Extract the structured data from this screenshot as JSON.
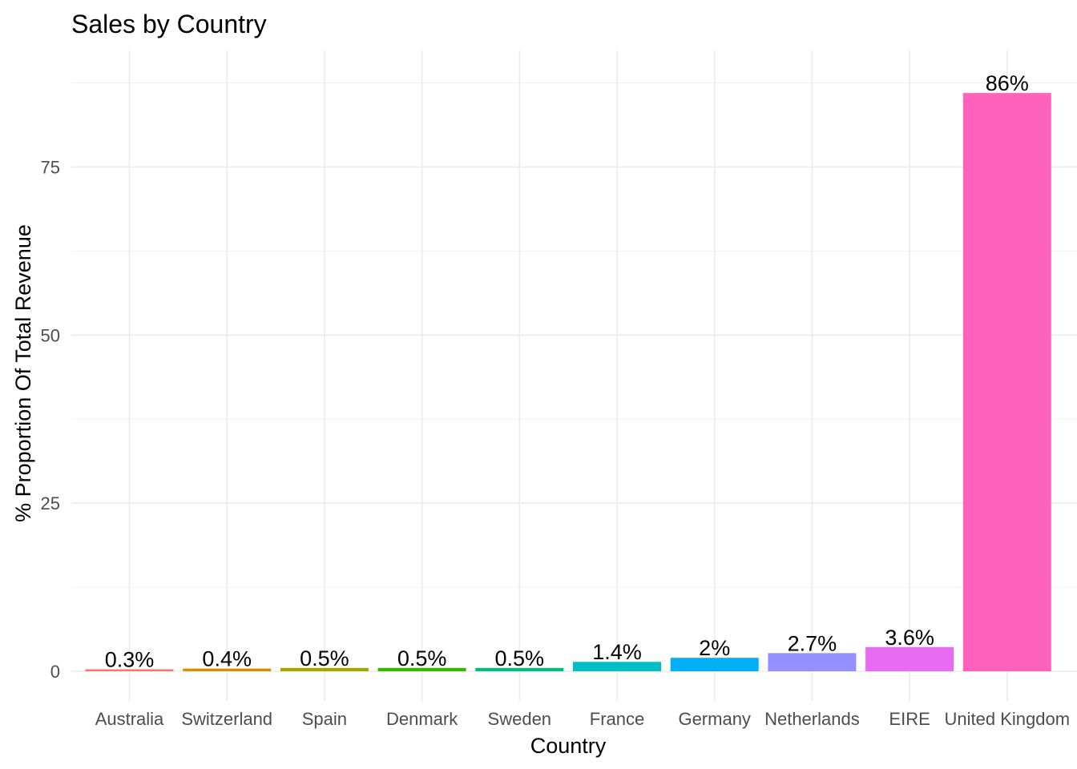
{
  "chart_data": {
    "type": "bar",
    "title": "Sales by Country",
    "xlabel": "Country",
    "ylabel": "% Proportion Of Total Revenue",
    "categories": [
      "Australia",
      "Switzerland",
      "Spain",
      "Denmark",
      "Sweden",
      "France",
      "Germany",
      "Netherlands",
      "EIRE",
      "United Kingdom"
    ],
    "values": [
      0.3,
      0.4,
      0.5,
      0.5,
      0.5,
      1.4,
      2.0,
      2.7,
      3.6,
      86.0
    ],
    "labels": [
      "0.3%",
      "0.4%",
      "0.5%",
      "0.5%",
      "0.5%",
      "1.4%",
      "2%",
      "2.7%",
      "3.6%",
      "86%"
    ],
    "colors": [
      "#F8766D",
      "#D89000",
      "#A3A500",
      "#39B600",
      "#00BF7D",
      "#00BFC4",
      "#00B0F6",
      "#9590FF",
      "#E76BF3",
      "#FF62BC"
    ],
    "yticks": [
      0,
      25,
      50,
      75
    ],
    "ylim": [
      -4.3,
      90.3
    ],
    "grid": true,
    "legend": "none"
  }
}
